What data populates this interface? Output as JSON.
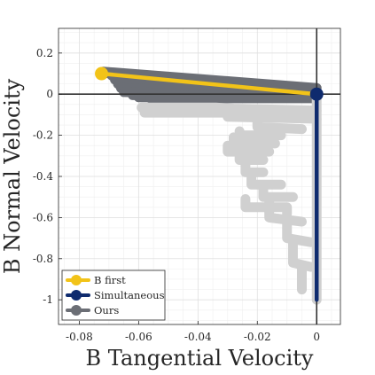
{
  "chart_data": {
    "type": "line",
    "xlabel": "B Tangential Velocity",
    "ylabel": "B Normal Velocity",
    "xlim": [
      -0.087,
      0.008
    ],
    "ylim": [
      -1.12,
      0.32
    ],
    "xticks": [
      -0.08,
      -0.06,
      -0.04,
      -0.02,
      0
    ],
    "xtick_labels": [
      "-0.08",
      "-0.06",
      "-0.04",
      "-0.02",
      "0"
    ],
    "yticks": [
      0.2,
      0,
      -0.2,
      -0.4,
      -0.6,
      -0.8,
      -1
    ],
    "ytick_labels": [
      "0.2",
      "0",
      "-0.2",
      "-0.4",
      "-0.6",
      "-0.8",
      "-1"
    ],
    "grid": true,
    "legend_position": "bottom-left",
    "series": [
      {
        "name": "B first",
        "color": "#F2C318",
        "x": [
          -0.0725,
          0
        ],
        "y": [
          0.1,
          0
        ]
      },
      {
        "name": "Simultaneous",
        "color": "#0F2B6E",
        "x": [
          0,
          0
        ],
        "y": [
          0,
          -1.0
        ]
      },
      {
        "name": "Ours",
        "color": "#6B6E75",
        "trajectories": [
          {
            "color": "#6B6E75",
            "x": [
              -0.072,
              0
            ],
            "y": [
              0.11,
              0.03
            ]
          },
          {
            "color": "#6B6E75",
            "x": [
              -0.07,
              0
            ],
            "y": [
              0.1,
              0.0
            ]
          },
          {
            "color": "#6B6E75",
            "x": [
              -0.069,
              0
            ],
            "y": [
              0.09,
              -0.01
            ]
          },
          {
            "color": "#6B6E75",
            "x": [
              -0.068,
              0
            ],
            "y": [
              0.07,
              -0.01
            ]
          },
          {
            "color": "#6B6E75",
            "x": [
              -0.067,
              0
            ],
            "y": [
              0.05,
              -0.01
            ]
          },
          {
            "color": "#6B6E75",
            "x": [
              -0.066,
              0
            ],
            "y": [
              0.03,
              -0.01
            ]
          },
          {
            "color": "#6B6E75",
            "x": [
              -0.065,
              0
            ],
            "y": [
              0.01,
              -0.01
            ]
          },
          {
            "color": "#6B6E75",
            "x": [
              -0.062,
              0
            ],
            "y": [
              -0.005,
              -0.01
            ]
          },
          {
            "color": "#6B6E75",
            "x": [
              -0.06,
              0
            ],
            "y": [
              -0.015,
              -0.015
            ]
          },
          {
            "color": "#6B6E75",
            "x": [
              -0.056,
              0
            ],
            "y": [
              -0.02,
              -0.02
            ]
          },
          {
            "color": "#D0D0D0",
            "x": [
              -0.059,
              -0.034,
              -0.028,
              0
            ],
            "y": [
              -0.065,
              -0.065,
              -0.07,
              -0.08
            ]
          },
          {
            "color": "#D0D0D0",
            "x": [
              -0.058,
              -0.03,
              -0.03,
              0
            ],
            "y": [
              -0.09,
              -0.09,
              -0.11,
              -0.12
            ]
          },
          {
            "color": "#D0D0D0",
            "x": [
              -0.02,
              -0.02,
              -0.005
            ],
            "y": [
              -0.13,
              -0.16,
              -0.17
            ]
          },
          {
            "color": "#D0D0D0",
            "x": [
              -0.026,
              -0.026,
              -0.012
            ],
            "y": [
              -0.18,
              -0.2,
              -0.2
            ]
          },
          {
            "color": "#D0D0D0",
            "x": [
              -0.028,
              -0.028,
              -0.014
            ],
            "y": [
              -0.21,
              -0.24,
              -0.24
            ]
          },
          {
            "color": "#D0D0D0",
            "x": [
              -0.03,
              -0.03,
              -0.016
            ],
            "y": [
              -0.25,
              -0.28,
              -0.28
            ]
          },
          {
            "color": "#D0D0D0",
            "x": [
              -0.026,
              -0.026,
              -0.018
            ],
            "y": [
              -0.29,
              -0.32,
              -0.32
            ]
          },
          {
            "color": "#D0D0D0",
            "x": [
              -0.024,
              -0.024,
              -0.018
            ],
            "y": [
              -0.33,
              -0.38,
              -0.38
            ]
          },
          {
            "color": "#D0D0D0",
            "x": [
              -0.022,
              -0.022,
              -0.012
            ],
            "y": [
              -0.39,
              -0.44,
              -0.44
            ]
          },
          {
            "color": "#D0D0D0",
            "x": [
              -0.018,
              -0.018,
              -0.008
            ],
            "y": [
              -0.45,
              -0.5,
              -0.5
            ]
          },
          {
            "color": "#D0D0D0",
            "x": [
              -0.024,
              -0.024,
              -0.01,
              -0.01
            ],
            "y": [
              -0.51,
              -0.55,
              -0.55,
              -0.58
            ]
          },
          {
            "color": "#D0D0D0",
            "x": [
              -0.016,
              -0.016,
              -0.005
            ],
            "y": [
              -0.52,
              -0.6,
              -0.62
            ]
          },
          {
            "color": "#D0D0D0",
            "x": [
              -0.01,
              -0.01,
              -0.002
            ],
            "y": [
              -0.6,
              -0.7,
              -0.72
            ]
          },
          {
            "color": "#D0D0D0",
            "x": [
              -0.008,
              -0.008,
              -0.002
            ],
            "y": [
              -0.72,
              -0.82,
              -0.84
            ]
          },
          {
            "color": "#D0D0D0",
            "x": [
              -0.005,
              -0.005
            ],
            "y": [
              -0.84,
              -0.95
            ]
          },
          {
            "color": "#D0D0D0",
            "x": [
              0,
              0
            ],
            "y": [
              0,
              -1.0
            ]
          }
        ]
      }
    ]
  }
}
